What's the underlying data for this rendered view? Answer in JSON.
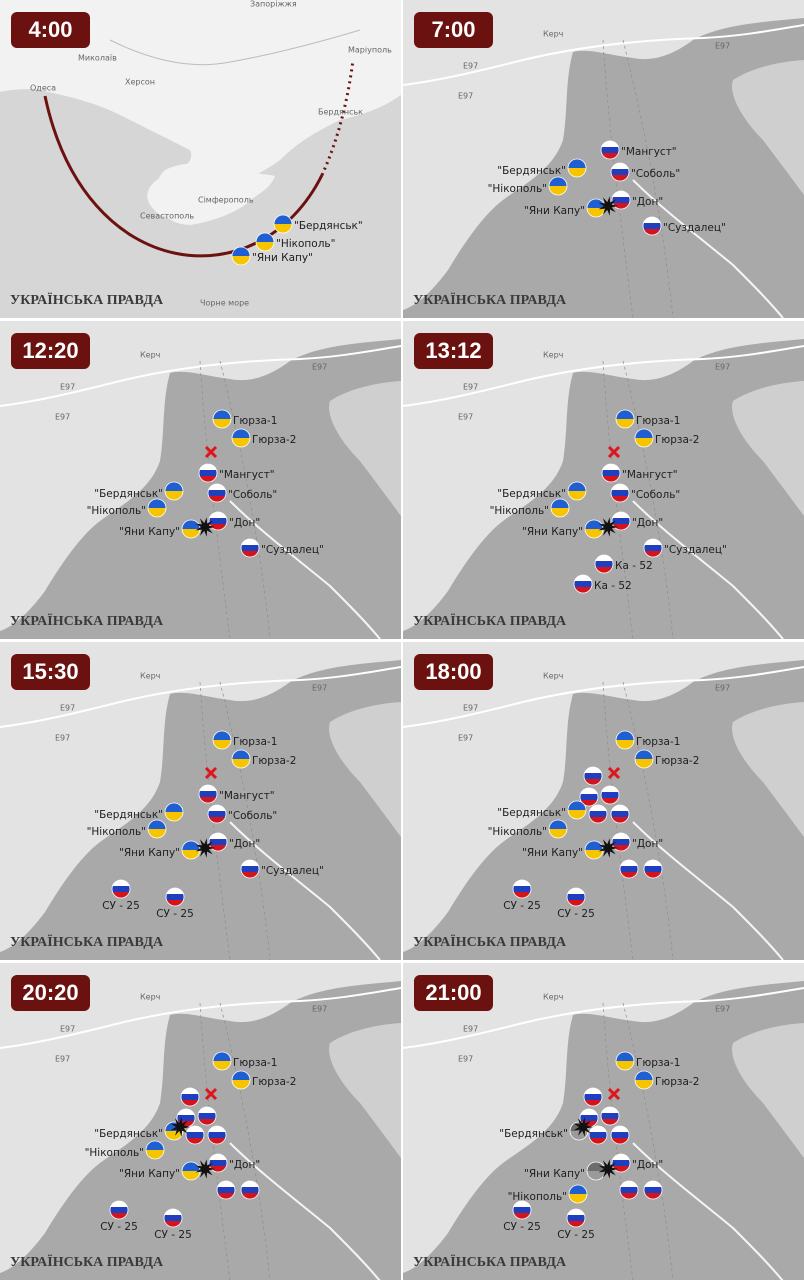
{
  "brand": "УКРАЇНСЬКА ПРАВДА",
  "panels": [
    {
      "time": "4:00",
      "places": [
        "Запоріжжя",
        "Миколаїв",
        "Маріуполь",
        "Одеса",
        "Херсон",
        "Бердянськ",
        "Сімферополь",
        "Севастополь",
        "Чорне море"
      ],
      "markers": [
        {
          "label": "\"Бердянськ\"",
          "flag": "ua"
        },
        {
          "label": "\"Нікополь\"",
          "flag": "ua"
        },
        {
          "label": "\"Яни Капу\"",
          "flag": "ua"
        }
      ]
    },
    {
      "time": "7:00",
      "places": [
        "Керч",
        "E97",
        "E97",
        "E97"
      ],
      "markers": [
        {
          "label": "\"Мангуст\"",
          "flag": "ru"
        },
        {
          "label": "\"Бердянськ\"",
          "flag": "ua"
        },
        {
          "label": "\"Соболь\"",
          "flag": "ru"
        },
        {
          "label": "\"Нікополь\"",
          "flag": "ua"
        },
        {
          "label": "\"Дон\"",
          "flag": "ru"
        },
        {
          "label": "\"Яни Капу\"",
          "flag": "ua"
        },
        {
          "label": "\"Суздалец\"",
          "flag": "ru"
        }
      ]
    },
    {
      "time": "12:20",
      "places": [
        "Керч",
        "E97",
        "E97",
        "E97"
      ],
      "markers": [
        {
          "label": "Гюрза-1",
          "flag": "ua"
        },
        {
          "label": "Гюрза-2",
          "flag": "ua"
        },
        {
          "label": "\"Мангуст\"",
          "flag": "ru"
        },
        {
          "label": "\"Бердянськ\"",
          "flag": "ua"
        },
        {
          "label": "\"Соболь\"",
          "flag": "ru"
        },
        {
          "label": "\"Нікополь\"",
          "flag": "ua"
        },
        {
          "label": "\"Дон\"",
          "flag": "ru"
        },
        {
          "label": "\"Яни Капу\"",
          "flag": "ua"
        },
        {
          "label": "\"Суздалец\"",
          "flag": "ru"
        }
      ]
    },
    {
      "time": "13:12",
      "places": [
        "Керч",
        "E97",
        "E97",
        "E97"
      ],
      "markers": [
        {
          "label": "Гюрза-1",
          "flag": "ua"
        },
        {
          "label": "Гюрза-2",
          "flag": "ua"
        },
        {
          "label": "\"Мангуст\"",
          "flag": "ru"
        },
        {
          "label": "\"Бердянськ\"",
          "flag": "ua"
        },
        {
          "label": "\"Соболь\"",
          "flag": "ru"
        },
        {
          "label": "\"Нікополь\"",
          "flag": "ua"
        },
        {
          "label": "\"Дон\"",
          "flag": "ru"
        },
        {
          "label": "\"Яни Капу\"",
          "flag": "ua"
        },
        {
          "label": "\"Суздалец\"",
          "flag": "ru"
        },
        {
          "label": "Ка - 52",
          "flag": "ru"
        },
        {
          "label": "Ка - 52",
          "flag": "ru"
        }
      ]
    },
    {
      "time": "15:30",
      "places": [
        "Керч",
        "E97",
        "E97",
        "E97"
      ],
      "markers": [
        {
          "label": "Гюрза-1",
          "flag": "ua"
        },
        {
          "label": "Гюрза-2",
          "flag": "ua"
        },
        {
          "label": "\"Мангуст\"",
          "flag": "ru"
        },
        {
          "label": "\"Бердянськ\"",
          "flag": "ua"
        },
        {
          "label": "\"Соболь\"",
          "flag": "ru"
        },
        {
          "label": "\"Нікополь\"",
          "flag": "ua"
        },
        {
          "label": "\"Дон\"",
          "flag": "ru"
        },
        {
          "label": "\"Яни Капу\"",
          "flag": "ua"
        },
        {
          "label": "\"Суздалец\"",
          "flag": "ru"
        },
        {
          "label": "СУ - 25",
          "flag": "ru"
        },
        {
          "label": "СУ - 25",
          "flag": "ru"
        }
      ]
    },
    {
      "time": "18:00",
      "places": [
        "Керч",
        "E97",
        "E97",
        "E97"
      ],
      "markers": [
        {
          "label": "Гюрза-1",
          "flag": "ua"
        },
        {
          "label": "Гюрза-2",
          "flag": "ua"
        },
        {
          "flag": "ru"
        },
        {
          "flag": "ru"
        },
        {
          "flag": "ru"
        },
        {
          "flag": "ru"
        },
        {
          "flag": "ru"
        },
        {
          "label": "\"Бердянськ\"",
          "flag": "ua"
        },
        {
          "label": "\"Нікополь\"",
          "flag": "ua"
        },
        {
          "label": "\"Дон\"",
          "flag": "ru"
        },
        {
          "label": "\"Яни Капу\"",
          "flag": "ua"
        },
        {
          "flag": "ru"
        },
        {
          "flag": "ru"
        },
        {
          "label": "СУ - 25",
          "flag": "ru"
        },
        {
          "label": "СУ - 25",
          "flag": "ru"
        }
      ]
    },
    {
      "time": "20:20",
      "places": [
        "Керч",
        "E97",
        "E97",
        "E97"
      ],
      "markers": [
        {
          "label": "Гюрза-1",
          "flag": "ua"
        },
        {
          "label": "Гюрза-2",
          "flag": "ua"
        },
        {
          "flag": "ru"
        },
        {
          "flag": "ru"
        },
        {
          "flag": "ru"
        },
        {
          "flag": "ru"
        },
        {
          "flag": "ru"
        },
        {
          "label": "\"Бердянськ\"",
          "flag": "ua"
        },
        {
          "label": "\"Нікополь\"",
          "flag": "ua"
        },
        {
          "label": "\"Дон\"",
          "flag": "ru"
        },
        {
          "label": "\"Яни Капу\"",
          "flag": "ua"
        },
        {
          "flag": "ru"
        },
        {
          "flag": "ru"
        },
        {
          "label": "СУ - 25",
          "flag": "ru"
        },
        {
          "label": "СУ - 25",
          "flag": "ru"
        }
      ]
    },
    {
      "time": "21:00",
      "places": [
        "Керч",
        "E97",
        "E97",
        "E97"
      ],
      "markers": [
        {
          "label": "Гюрза-1",
          "flag": "ua"
        },
        {
          "label": "Гюрза-2",
          "flag": "ua"
        },
        {
          "flag": "ru"
        },
        {
          "flag": "ru"
        },
        {
          "flag": "ru"
        },
        {
          "flag": "ru"
        },
        {
          "flag": "ru"
        },
        {
          "label": "\"Бердянськ\"",
          "flag": "gray"
        },
        {
          "label": "\"Яни Капу\"",
          "flag": "gray"
        },
        {
          "label": "\"Нікополь\"",
          "flag": "ua"
        },
        {
          "label": "\"Дон\"",
          "flag": "ru"
        },
        {
          "flag": "ru"
        },
        {
          "flag": "ru"
        },
        {
          "label": "СУ - 25",
          "flag": "ru"
        },
        {
          "label": "СУ - 25",
          "flag": "ru"
        }
      ]
    }
  ]
}
